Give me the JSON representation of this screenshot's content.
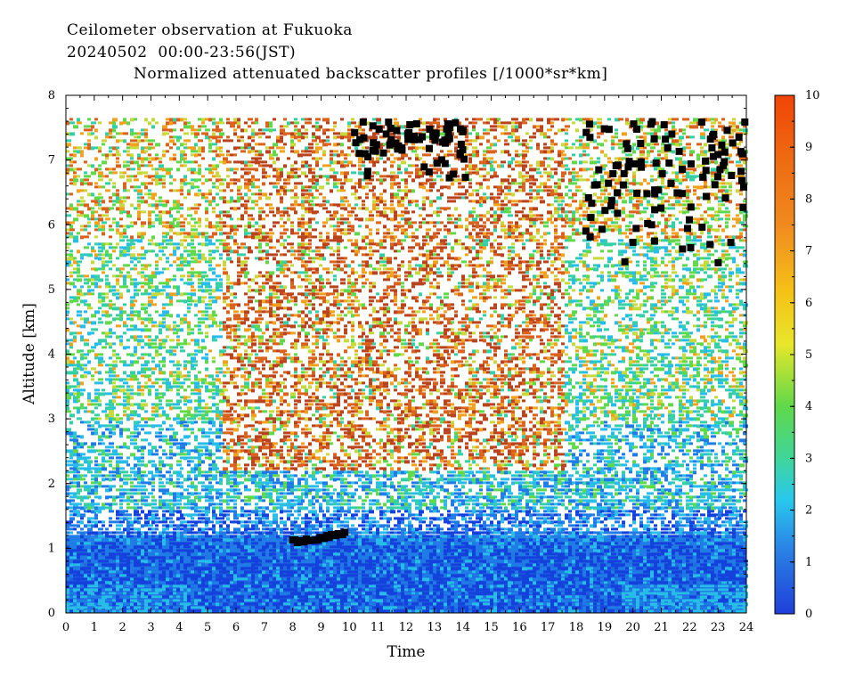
{
  "header": {
    "line1": "Ceilometer observation at Fukuoka",
    "line2": "20240502  00:00-23:56(JST)",
    "line3": "Normalized attenuated backscatter profiles [/1000*sr*km]"
  },
  "chart_data": {
    "type": "heatmap",
    "xlabel": "Time",
    "ylabel": "Altitude [km]",
    "xlim": [
      0,
      24
    ],
    "ylim": [
      0,
      8
    ],
    "x_ticks": [
      0,
      1,
      2,
      3,
      4,
      5,
      6,
      7,
      8,
      9,
      10,
      11,
      12,
      13,
      14,
      15,
      16,
      17,
      18,
      19,
      20,
      21,
      22,
      23,
      24
    ],
    "y_ticks": [
      0,
      1,
      2,
      3,
      4,
      5,
      6,
      7,
      8
    ],
    "colorbar": {
      "range": [
        0,
        10
      ],
      "ticks": [
        0,
        1,
        2,
        3,
        4,
        5,
        6,
        7,
        8,
        9,
        10
      ]
    },
    "data_top_altitude_km": 7.65,
    "layers": [
      {
        "feature": "boundary layer high backscatter",
        "x_range": [
          0,
          24
        ],
        "top_km": [
          1.0,
          1.3
        ],
        "value_approx": [
          1,
          2.5
        ]
      },
      {
        "feature": "free troposphere sparse signal",
        "x_range": [
          0,
          24
        ],
        "alt_range_km": [
          1.3,
          7.65
        ],
        "value_approx": [
          3,
          8
        ]
      },
      {
        "feature": "cloud detections (low)",
        "x_range": [
          8.0,
          9.9
        ],
        "alt_km": 1.1
      },
      {
        "feature": "cloud detections (high)",
        "x_range": [
          10.1,
          14.1
        ],
        "alt_range_km": [
          6.7,
          7.6
        ]
      },
      {
        "feature": "cloud detections (high)",
        "x_range": [
          18.3,
          24
        ],
        "alt_range_km": [
          5.4,
          7.6
        ]
      }
    ],
    "colors": {
      "c0": "#1440dc",
      "c1": "#1f7be5",
      "c2": "#28bde9",
      "c3": "#35cfa7",
      "c4": "#5fd84a",
      "c5": "#c8d93c",
      "c6": "#f0a21e",
      "c7": "#d9621c",
      "c8": "#b8431c",
      "c9": "#e03c0a"
    }
  }
}
